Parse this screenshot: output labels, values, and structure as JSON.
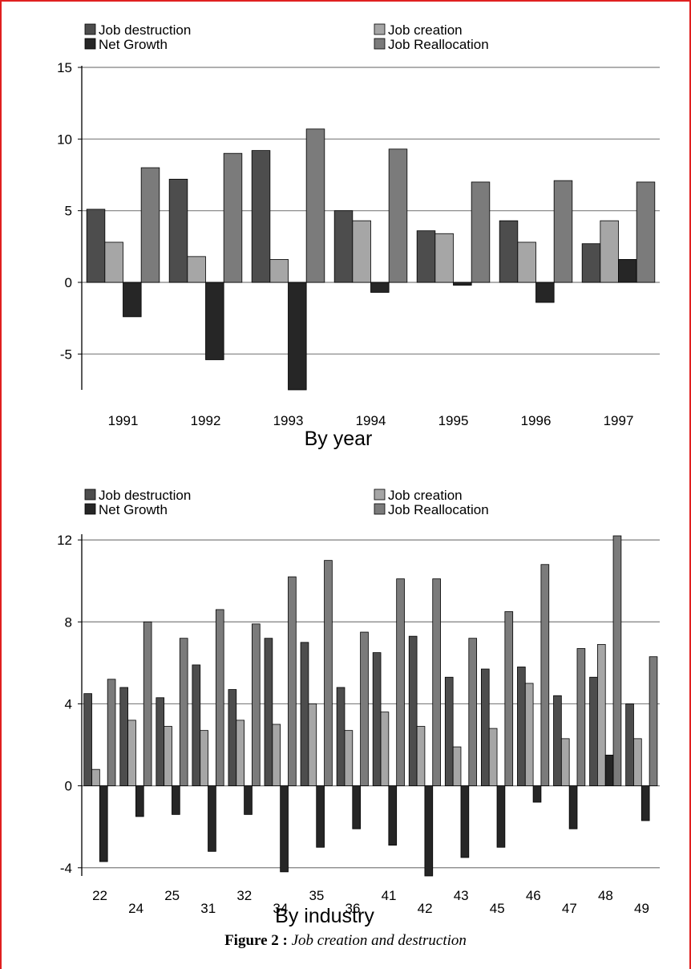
{
  "colors": {
    "job_destruction": "#4d4d4d",
    "job_creation": "#a6a6a6",
    "net_growth": "#262626",
    "job_reallocation": "#7b7b7b",
    "gridline": "#7f7f7f",
    "frame": "#e02020"
  },
  "chart_data": [
    {
      "type": "bar",
      "title": "",
      "xlabel": "By year",
      "ylabel": "",
      "ylim": [
        -7.5,
        15
      ],
      "yticks": [
        "15",
        "10",
        "5",
        "0",
        "-5"
      ],
      "grid": true,
      "legend_position": "top",
      "categories": [
        "1991",
        "1992",
        "1993",
        "1994",
        "1995",
        "1996",
        "1997"
      ],
      "series": [
        {
          "name": "Job destruction",
          "values": [
            5.1,
            7.2,
            9.2,
            5.0,
            3.6,
            4.3,
            2.7
          ]
        },
        {
          "name": "Job creation",
          "values": [
            2.8,
            1.8,
            1.6,
            4.3,
            3.4,
            2.8,
            4.3
          ]
        },
        {
          "name": "Net Growth",
          "values": [
            -2.4,
            -5.4,
            -7.5,
            -0.7,
            -0.2,
            -1.4,
            1.6
          ]
        },
        {
          "name": "Job Reallocation",
          "values": [
            8.0,
            9.0,
            10.7,
            9.3,
            7.0,
            7.1,
            7.0
          ]
        }
      ]
    },
    {
      "type": "bar",
      "title": "",
      "xlabel": "By industry",
      "ylabel": "",
      "ylim": [
        -4.4,
        12.2
      ],
      "yticks": [
        "12",
        "8",
        "4",
        "0",
        "-4"
      ],
      "grid": true,
      "legend_position": "top",
      "categories": [
        "22",
        "24",
        "25",
        "31",
        "32",
        "34",
        "35",
        "36",
        "41",
        "42",
        "43",
        "45",
        "46",
        "47",
        "48",
        "49"
      ],
      "series": [
        {
          "name": "Job destruction",
          "values": [
            4.5,
            4.8,
            4.3,
            5.9,
            4.7,
            7.2,
            7.0,
            4.8,
            6.5,
            7.3,
            5.3,
            5.7,
            5.8,
            4.4,
            5.3,
            4.0
          ]
        },
        {
          "name": "Job creation",
          "values": [
            0.8,
            3.2,
            2.9,
            2.7,
            3.2,
            3.0,
            4.0,
            2.7,
            3.6,
            2.9,
            1.9,
            2.8,
            5.0,
            2.3,
            6.9,
            2.3
          ]
        },
        {
          "name": "Net Growth",
          "values": [
            -3.7,
            -1.5,
            -1.4,
            -3.2,
            -1.4,
            -4.2,
            -3.0,
            -2.1,
            -2.9,
            -4.4,
            -3.5,
            -3.0,
            -0.8,
            -2.1,
            1.5,
            -1.7
          ]
        },
        {
          "name": "Job Reallocation",
          "values": [
            5.2,
            8.0,
            7.2,
            8.6,
            7.9,
            10.2,
            11.0,
            7.5,
            10.1,
            10.1,
            7.2,
            8.5,
            10.8,
            6.7,
            12.2,
            6.3
          ]
        }
      ]
    }
  ],
  "caption": {
    "label": "Figure 2 :",
    "text": "Job creation and destruction"
  }
}
